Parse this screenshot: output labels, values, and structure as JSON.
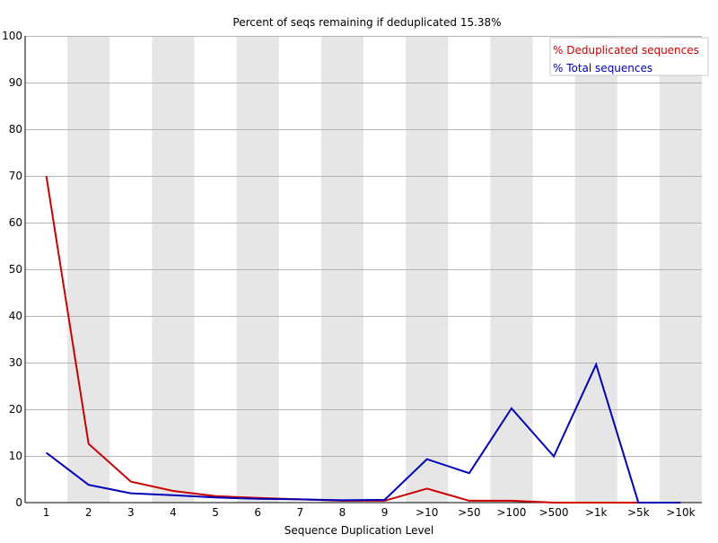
{
  "chart_data": {
    "type": "line",
    "title": "Percent of seqs remaining if deduplicated 15.38%",
    "xlabel": "Sequence Duplication Level",
    "ylabel": "",
    "ylim": [
      0,
      100
    ],
    "yticks": [
      0,
      10,
      20,
      30,
      40,
      50,
      60,
      70,
      80,
      90,
      100
    ],
    "categories": [
      "1",
      "2",
      "3",
      "4",
      "5",
      "6",
      "7",
      "8",
      "9",
      ">10",
      ">50",
      ">100",
      ">500",
      ">1k",
      ">5k",
      ">10k"
    ],
    "grid": true,
    "alternating_column_shading": true,
    "legend_position": "top-right",
    "series": [
      {
        "name": "% Deduplicated sequences",
        "color": "#cc0000",
        "values": [
          70.0,
          12.6,
          4.5,
          2.5,
          1.4,
          1.0,
          0.7,
          0.4,
          0.4,
          3.0,
          0.4,
          0.4,
          0.0,
          0.0,
          0.0,
          0.0
        ]
      },
      {
        "name": "% Total sequences",
        "color": "#0000bb",
        "values": [
          10.7,
          3.8,
          2.0,
          1.6,
          1.1,
          0.8,
          0.7,
          0.5,
          0.6,
          9.3,
          6.3,
          20.2,
          9.9,
          29.6,
          0.0,
          0.0
        ]
      }
    ]
  }
}
